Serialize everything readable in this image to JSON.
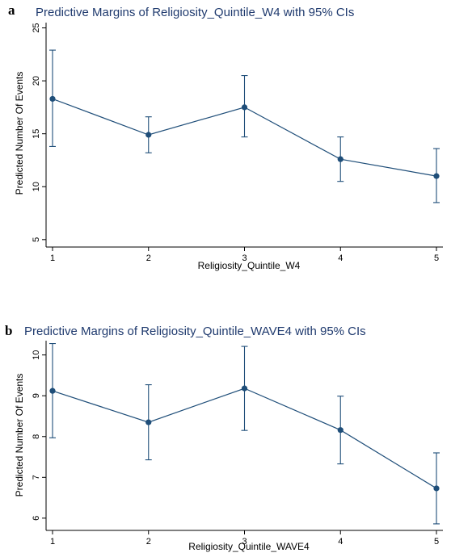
{
  "chart_data": [
    {
      "type": "line",
      "panel_label": "a",
      "title": "Predictive Margins of Religiosity_Quintile_W4 with 95% CIs",
      "xlabel": "Religiosity_Quintile_W4",
      "ylabel": "Predicted Number Of Events",
      "x": [
        1,
        2,
        3,
        4,
        5
      ],
      "values": [
        18.3,
        14.9,
        17.5,
        12.6,
        11.0
      ],
      "ci_lower": [
        13.8,
        13.2,
        14.7,
        10.5,
        8.5
      ],
      "ci_upper": [
        22.9,
        16.6,
        20.5,
        14.7,
        13.6
      ],
      "yticks": [
        5,
        10,
        15,
        20,
        25
      ],
      "xticks": [
        1,
        2,
        3,
        4,
        5
      ],
      "ylim": [
        4.3,
        25.5
      ],
      "xlim": [
        1,
        5
      ],
      "grid": false,
      "color": "#1f4e79"
    },
    {
      "type": "line",
      "panel_label": "b",
      "title": "Predictive Margins of Religiosity_Quintile_WAVE4 with 95% CIs",
      "xlabel": "Religiosity_Quintile_WAVE4",
      "ylabel": "Predicted Number Of Events",
      "x": [
        1,
        2,
        3,
        4,
        5
      ],
      "values": [
        9.12,
        8.35,
        9.18,
        8.16,
        6.73
      ],
      "ci_lower": [
        7.97,
        7.43,
        8.15,
        7.33,
        5.86
      ],
      "ci_upper": [
        10.28,
        9.27,
        10.21,
        8.99,
        7.6
      ],
      "yticks": [
        6,
        7,
        8,
        9,
        10
      ],
      "xticks": [
        1,
        2,
        3,
        4,
        5
      ],
      "ylim": [
        5.7,
        10.35
      ],
      "xlim": [
        1,
        5
      ],
      "grid": false,
      "color": "#1f4e79"
    }
  ]
}
